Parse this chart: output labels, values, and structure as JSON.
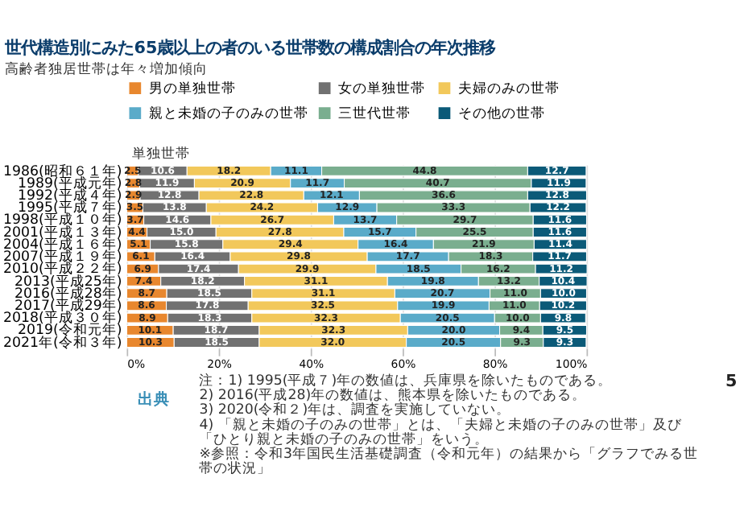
{
  "chart_data": {
    "type": "bar",
    "orientation": "horizontal",
    "stacked": true,
    "title": "世代構造別にみた65歳以上の者のいる世帯数の構成割合の年次推移",
    "subtitle": "高齢者独居世帯は年々増加傾向",
    "categories": [
      "1986(昭和６１年)",
      "1989(平成元年)",
      "1992(平成４年)",
      "1995(平成７年)",
      "1998(平成１０年)",
      "2001(平成１３年)",
      "2004(平成１６年)",
      "2007(平成１９年)",
      "2010(平成２２年)",
      "2013(平成25年)",
      "2016(平成28年)",
      "2017(平成29年)",
      "2018(平成３０年)",
      "2019(令和元年)",
      "2021年(令和３年)"
    ],
    "series": [
      {
        "name": "男の単独世帯",
        "color": "#e8872e",
        "values": [
          2.5,
          2.8,
          2.9,
          3.5,
          3.7,
          4.4,
          5.1,
          6.1,
          6.9,
          7.4,
          8.7,
          8.6,
          8.9,
          10.1,
          10.3
        ],
        "value_labels": [
          "2.5",
          "2.8",
          "2.9",
          "3.5",
          "3.7",
          "4.4",
          "5.1",
          "6.1",
          "6.9",
          "7.4",
          "8.7",
          "8.6",
          "8.9",
          "10.1",
          "10.3"
        ]
      },
      {
        "name": "女の単独世帯",
        "color": "#717171",
        "values": [
          10.6,
          11.9,
          12.8,
          13.8,
          14.6,
          15.0,
          15.8,
          16.4,
          17.4,
          18.2,
          18.5,
          17.8,
          18.3,
          18.7,
          18.5
        ],
        "value_labels": [
          "10.6",
          "11.9",
          "12.8",
          "13.8",
          "14.6",
          "15.0",
          "15.8",
          "16.4",
          "17.4",
          "18.2",
          "18.5",
          "17.8",
          "18.3",
          "18.7",
          "18.5"
        ]
      },
      {
        "name": "夫婦のみの世帯",
        "color": "#f2c85b",
        "values": [
          18.2,
          20.9,
          22.8,
          24.2,
          26.7,
          27.8,
          29.4,
          29.8,
          29.9,
          31.1,
          31.1,
          32.5,
          32.3,
          32.3,
          32.0
        ],
        "value_labels": [
          "18.2",
          "20.9",
          "22.8",
          "24.2",
          "26.7",
          "27.8",
          "29.4",
          "29.8",
          "29.9",
          "31.1",
          "31.1",
          "32.5",
          "32.3",
          "32.3",
          "32.0"
        ]
      },
      {
        "name": "親と未婚の子のみの世帯",
        "color": "#5aabc9",
        "values": [
          11.1,
          11.7,
          12.1,
          12.9,
          13.7,
          15.7,
          16.4,
          17.7,
          18.5,
          19.8,
          20.7,
          19.9,
          20.5,
          20.0,
          20.5
        ],
        "value_labels": [
          "11.1",
          "11.7",
          "12.1",
          "12.9",
          "13.7",
          "15.7",
          "16.4",
          "17.7",
          "18.5",
          "19.8",
          "20.7",
          "19.9",
          "20.5",
          "20.0",
          "20.5"
        ]
      },
      {
        "name": "三世代世帯",
        "color": "#7aae8f",
        "values": [
          44.8,
          40.7,
          36.6,
          33.3,
          29.7,
          25.5,
          21.9,
          18.3,
          16.2,
          13.2,
          11.0,
          11.0,
          10.0,
          9.4,
          9.3
        ],
        "value_labels": [
          "44.8",
          "40.7",
          "36.6",
          "33.3",
          "29.7",
          "25.5",
          "21.9",
          "18.3",
          "16.2",
          "13.2",
          "11.0",
          "11.0",
          "10.0",
          "9.4",
          "9.3"
        ]
      },
      {
        "name": "その他の世帯",
        "color": "#0b5a78",
        "values": [
          12.7,
          11.9,
          12.8,
          12.2,
          11.6,
          11.6,
          11.4,
          11.7,
          11.2,
          10.4,
          10.0,
          10.2,
          9.8,
          9.5,
          9.3
        ],
        "value_labels": [
          "12.7",
          "11.9",
          "12.8",
          "12.2",
          "11.6",
          "11.6",
          "11.4",
          "11.7",
          "11.2",
          "10.4",
          "10.0",
          "10.2",
          "9.8",
          "9.5",
          "9.3"
        ]
      }
    ],
    "xlim": [
      0,
      100
    ],
    "xticks": [
      {
        "value": 0,
        "label": "0%"
      },
      {
        "value": 20,
        "label": "20%"
      },
      {
        "value": 40,
        "label": "40%"
      },
      {
        "value": 60,
        "label": "60%"
      },
      {
        "value": 80,
        "label": "80%"
      },
      {
        "value": 100,
        "label": "100%"
      }
    ],
    "grid": "x",
    "legend": "top",
    "annotations": [
      "単独世帯",
      "出典",
      "注：1) 1995(平成７)年の数値は、兵庫県を除いたものである。",
      "2) 2016(平成28)年の数値は、熊本県を除いたものである。",
      "3) 2020(令和２)年は、調査を実施していない。",
      "4) 「親と未婚の子のみの世帯」とは、「夫婦と未婚の子のみの世帯」及び「ひとり親と未婚の子のみの世帯」をいう。",
      "※参照：令和3年国民生活基礎調査（令和元年）の結果から「グラフでみる世帯の状況」",
      "5"
    ]
  }
}
